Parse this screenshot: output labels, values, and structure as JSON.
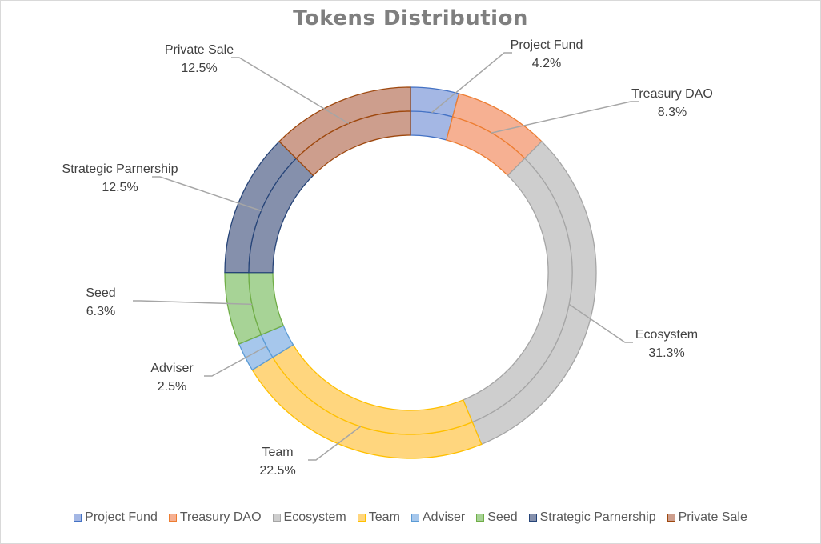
{
  "chart_data": {
    "type": "pie",
    "title": "Tokens Distribution",
    "categories": [
      "Project Fund",
      "Treasury DAO",
      "Ecosystem",
      "Team",
      "Adviser",
      "Seed",
      "Strategic Parnership",
      "Private Sale"
    ],
    "values": [
      4.2,
      8.3,
      31.3,
      22.5,
      2.5,
      6.3,
      12.5,
      12.5
    ],
    "value_labels": [
      "4.2%",
      "8.3%",
      "31.3%",
      "22.5%",
      "2.5%",
      "6.3%",
      "12.5%",
      "12.5%"
    ],
    "colors": {
      "fill": [
        "#a4b7e4",
        "#f6b092",
        "#cecece",
        "#ffd67e",
        "#a6c7ec",
        "#a7d396",
        "#8590ac",
        "#cd9e8d"
      ],
      "stroke": [
        "#4472c4",
        "#ed7d31",
        "#a5a5a5",
        "#ffc000",
        "#5b9bd5",
        "#70ad47",
        "#264478",
        "#9e480e"
      ]
    },
    "rings": 2,
    "legend_position": "bottom"
  }
}
